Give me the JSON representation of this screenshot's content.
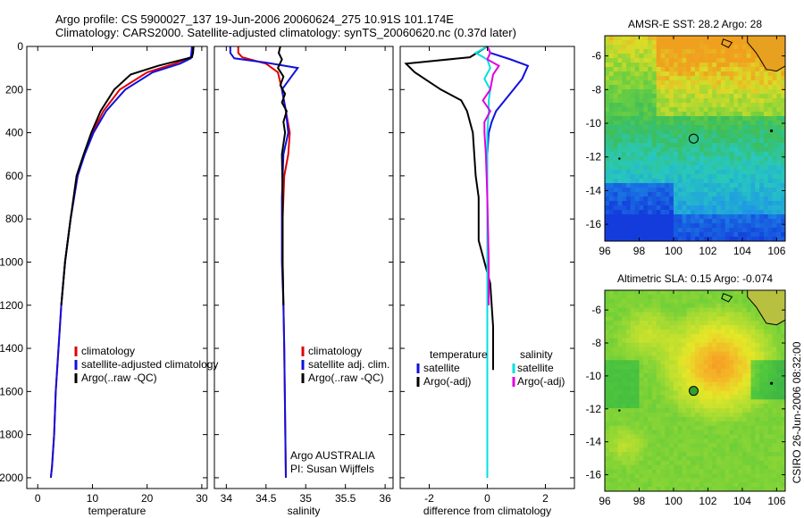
{
  "header": {
    "line1": "Argo profile: CS 5900027_137 19-Jun-2006 20060624_275 10.91S 101.174E",
    "line2": "Climatology: CARS2000. Satellite-adjusted climatology: synTS_20060620.nc (0.37d later)"
  },
  "credit": "CSIRO 26-Jun-2006 08:32:00",
  "colors": {
    "climatology": "#e00000",
    "satellite": "#1010e0",
    "argo": "#000000",
    "cyan": "#00e0e0",
    "magenta": "#e000e0"
  },
  "chart_data": [
    {
      "type": "line",
      "name": "temperature-panel",
      "xlabel": "temperature",
      "ylabel": "",
      "xlim": [
        -2,
        31
      ],
      "ylim": [
        2050,
        0
      ],
      "xticks": [
        "0",
        "10",
        "20",
        "30"
      ],
      "xtick_values": [
        0,
        10,
        20,
        30
      ],
      "yticks": [
        "0",
        "200",
        "400",
        "600",
        "800",
        "1000",
        "1200",
        "1400",
        "1600",
        "1800",
        "2000"
      ],
      "ytick_values": [
        0,
        200,
        400,
        600,
        800,
        1000,
        1200,
        1400,
        1600,
        1800,
        2000
      ],
      "legend": [
        {
          "label": "climatology",
          "color": "#e00000"
        },
        {
          "label": "satellite-adjusted climatology",
          "color": "#1010e0"
        },
        {
          "label": "Argo(..raw -QC)",
          "color": "#000000"
        }
      ],
      "series": [
        {
          "color": "#e00000",
          "x": [
            28.3,
            28.2,
            28.0,
            25,
            20,
            15,
            12,
            10,
            8.5,
            7.3,
            6,
            5,
            4.3,
            3.8,
            3.3,
            3.0,
            2.6,
            2.4
          ],
          "y": [
            0,
            30,
            50,
            80,
            120,
            200,
            300,
            400,
            500,
            600,
            800,
            1000,
            1200,
            1400,
            1600,
            1800,
            1950,
            2000
          ]
        },
        {
          "color": "#1010e0",
          "x": [
            28.2,
            28.1,
            28.0,
            26,
            21,
            16,
            12.5,
            10.2,
            8.6,
            7.3,
            6,
            5,
            4.3,
            3.8,
            3.3,
            3.0,
            2.6,
            2.4
          ],
          "y": [
            0,
            30,
            55,
            80,
            120,
            200,
            300,
            400,
            500,
            600,
            800,
            1000,
            1200,
            1400,
            1600,
            1800,
            1950,
            2000
          ]
        },
        {
          "color": "#000000",
          "x": [
            28.5,
            28.4,
            28.2,
            22,
            17,
            14,
            11.5,
            9.8,
            8.4,
            7.1,
            6,
            5,
            4.3
          ],
          "y": [
            0,
            30,
            50,
            90,
            130,
            200,
            300,
            400,
            500,
            600,
            800,
            1000,
            1200
          ]
        }
      ]
    },
    {
      "type": "line",
      "name": "salinity-panel",
      "xlabel": "salinity",
      "ylabel": "",
      "xlim": [
        33.85,
        36.1
      ],
      "ylim": [
        2050,
        0
      ],
      "xticks": [
        "34",
        "34.5",
        "35",
        "35.5",
        "36"
      ],
      "xtick_values": [
        34,
        34.5,
        35,
        35.5,
        36
      ],
      "legend": [
        {
          "label": "climatology",
          "color": "#e00000"
        },
        {
          "label": "satellite adj. clim.",
          "color": "#1010e0"
        },
        {
          "label": "Argo(..raw -QC)",
          "color": "#000000"
        }
      ],
      "annotations": [
        "Argo AUSTRALIA",
        "PI: Susan Wijffels"
      ],
      "series": [
        {
          "color": "#e00000",
          "x": [
            34.15,
            34.15,
            34.2,
            34.5,
            34.65,
            34.7,
            34.75,
            34.8,
            34.78,
            34.73,
            34.71,
            34.71,
            34.72,
            34.73,
            34.74,
            34.75
          ],
          "y": [
            0,
            30,
            50,
            80,
            120,
            200,
            300,
            400,
            500,
            600,
            800,
            1000,
            1200,
            1400,
            1700,
            2000
          ]
        },
        {
          "color": "#1010e0",
          "x": [
            34.05,
            34.05,
            34.1,
            34.5,
            34.9,
            34.8,
            34.7,
            34.75,
            34.78,
            34.72,
            34.7,
            34.7,
            34.72,
            34.73,
            34.74,
            34.75
          ],
          "y": [
            0,
            30,
            55,
            75,
            100,
            150,
            200,
            300,
            400,
            500,
            700,
            1000,
            1200,
            1400,
            1700,
            2000
          ]
        },
        {
          "color": "#000000",
          "x": [
            34.68,
            34.66,
            34.7,
            34.65,
            34.72,
            34.68,
            34.74,
            34.7,
            34.76,
            34.72,
            34.74,
            34.7,
            34.71,
            34.71,
            34.72
          ],
          "y": [
            0,
            30,
            60,
            100,
            140,
            180,
            220,
            260,
            300,
            350,
            400,
            500,
            700,
            1000,
            1200
          ]
        }
      ]
    },
    {
      "type": "line",
      "name": "difference-panel",
      "xlabel": "difference from climatology",
      "ylabel": "",
      "xlim": [
        -3,
        3
      ],
      "ylim": [
        2050,
        0
      ],
      "xticks": [
        "-2",
        "0",
        "2"
      ],
      "xtick_values": [
        -2,
        0,
        2
      ],
      "legend": [
        {
          "label": "temperature",
          "color": ""
        },
        {
          "label": "satellite",
          "color": "#1010e0"
        },
        {
          "label": "Argo(-adj)",
          "color": "#000000"
        },
        {
          "label": "salinity",
          "color": ""
        },
        {
          "label": "satellite",
          "color": "#00e0e0"
        },
        {
          "label": "Argo(-adj)",
          "color": "#e000e0"
        }
      ],
      "series": [
        {
          "color": "#1010e0",
          "x": [
            0,
            0.1,
            0.8,
            1.4,
            1.2,
            0.9,
            0.6,
            0.3,
            0.15,
            0.05,
            0,
            0,
            0
          ],
          "y": [
            0,
            30,
            60,
            90,
            150,
            200,
            250,
            300,
            350,
            400,
            500,
            1000,
            2000
          ]
        },
        {
          "color": "#000000",
          "x": [
            0,
            -0.6,
            -2.8,
            -2.5,
            -1.6,
            -0.9,
            -0.7,
            -0.5,
            -0.4,
            -0.3,
            -0.3,
            0.1,
            0.2,
            0.2
          ],
          "y": [
            0,
            50,
            80,
            120,
            200,
            250,
            300,
            400,
            600,
            700,
            900,
            1100,
            1300,
            1500
          ]
        },
        {
          "color": "#00e0e0",
          "x": [
            0,
            -0.4,
            0,
            0.1,
            -0.1,
            0.1,
            0.05,
            0.05,
            0,
            0,
            0,
            0,
            0
          ],
          "y": [
            0,
            30,
            60,
            100,
            150,
            200,
            250,
            300,
            400,
            600,
            800,
            1200,
            2000
          ]
        },
        {
          "color": "#e000e0",
          "x": [
            0,
            0.1,
            0,
            0.4,
            0.2,
            0.1,
            -0.15,
            0.1,
            -0.1,
            -0.1,
            -0.05,
            0,
            0.05,
            0.05
          ],
          "y": [
            0,
            30,
            60,
            90,
            130,
            200,
            250,
            300,
            350,
            400,
            500,
            700,
            1000,
            1200
          ]
        }
      ]
    },
    {
      "type": "heatmap",
      "name": "sst-map",
      "title": "AMSR-E SST: 28.2 Argo: 28",
      "xlim": [
        96,
        106.5
      ],
      "ylim": [
        -17,
        -4.8
      ],
      "xticks": [
        "96",
        "98",
        "100",
        "102",
        "104",
        "106"
      ],
      "xtick_values": [
        96,
        98,
        100,
        102,
        104,
        106
      ],
      "yticks": [
        "-6",
        "-8",
        "-10",
        "-12",
        "-14",
        "-16"
      ],
      "ytick_values": [
        -6,
        -8,
        -10,
        -12,
        -14,
        -16
      ],
      "marker": {
        "lon": 101.17,
        "lat": -10.91
      }
    },
    {
      "type": "heatmap",
      "name": "sla-map",
      "title": "Altimetric SLA: 0.15 Argo: -0.074",
      "xlim": [
        96,
        106.5
      ],
      "ylim": [
        -17,
        -4.8
      ],
      "xticks": [
        "96",
        "98",
        "100",
        "102",
        "104",
        "106"
      ],
      "xtick_values": [
        96,
        98,
        100,
        102,
        104,
        106
      ],
      "yticks": [
        "-6",
        "-8",
        "-10",
        "-12",
        "-14",
        "-16"
      ],
      "ytick_values": [
        -6,
        -8,
        -10,
        -12,
        -14,
        -16
      ],
      "marker": {
        "lon": 101.17,
        "lat": -10.91
      }
    }
  ]
}
